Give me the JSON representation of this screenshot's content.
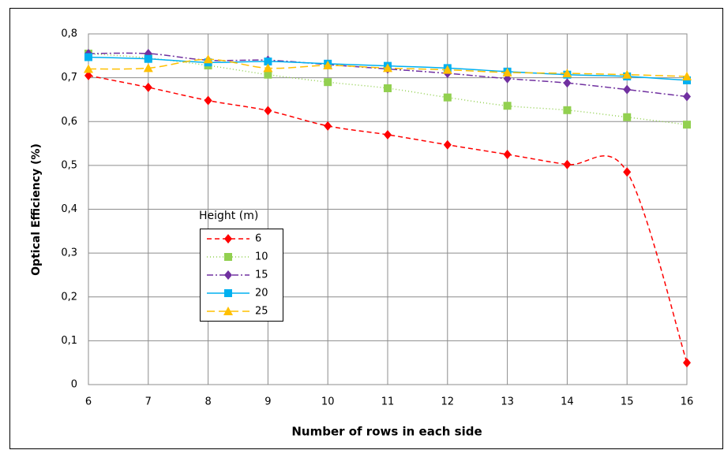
{
  "chart_data": {
    "type": "line",
    "x_label": "Number of rows in each side",
    "y_label": "Optical Efficiency (%)",
    "legend_title": "Height (m)",
    "x": [
      6,
      7,
      8,
      9,
      10,
      11,
      12,
      13,
      14,
      15,
      16
    ],
    "xlim": [
      6,
      16
    ],
    "xticks": [
      6,
      7,
      8,
      9,
      10,
      11,
      12,
      13,
      14,
      15,
      16
    ],
    "ylim": [
      0,
      0.8
    ],
    "yticks": [
      0,
      {
        "value": 0.1,
        "label": "0,1"
      },
      {
        "value": 0.2,
        "label": "0,2"
      },
      {
        "value": 0.3,
        "label": "0,3"
      },
      {
        "value": 0.4,
        "label": "0,4"
      },
      {
        "value": 0.5,
        "label": "0,5"
      },
      {
        "value": 0.6,
        "label": "0,6"
      },
      {
        "value": 0.7,
        "label": "0,7"
      },
      {
        "value": 0.8,
        "label": "0,8"
      }
    ],
    "grid": true,
    "series": [
      {
        "name": "6",
        "color": "#ff0000",
        "marker": "diamond",
        "dash": "6,4",
        "values": [
          0.705,
          0.678,
          0.648,
          0.625,
          0.59,
          0.57,
          0.547,
          0.525,
          0.502,
          0.485,
          0.05
        ]
      },
      {
        "name": "10",
        "color": "#92d050",
        "marker": "square",
        "dash": "1,3",
        "values": [
          0.755,
          0.745,
          0.728,
          0.707,
          0.69,
          0.676,
          0.655,
          0.636,
          0.626,
          0.61,
          0.593
        ]
      },
      {
        "name": "15",
        "color": "#7030a0",
        "marker": "diamond",
        "dash": "8,3,2,3",
        "values": [
          0.755,
          0.755,
          0.74,
          0.74,
          0.73,
          0.72,
          0.71,
          0.698,
          0.688,
          0.673,
          0.657
        ]
      },
      {
        "name": "20",
        "color": "#00b0f0",
        "marker": "square",
        "dash": "none",
        "values": [
          0.747,
          0.743,
          0.735,
          0.737,
          0.732,
          0.727,
          0.722,
          0.714,
          0.707,
          0.703,
          0.694
        ]
      },
      {
        "name": "25",
        "color": "#ffc000",
        "marker": "triangle",
        "dash": "10,5",
        "values": [
          0.72,
          0.722,
          0.742,
          0.722,
          0.728,
          0.722,
          0.718,
          0.712,
          0.71,
          0.707,
          0.703
        ]
      }
    ]
  }
}
